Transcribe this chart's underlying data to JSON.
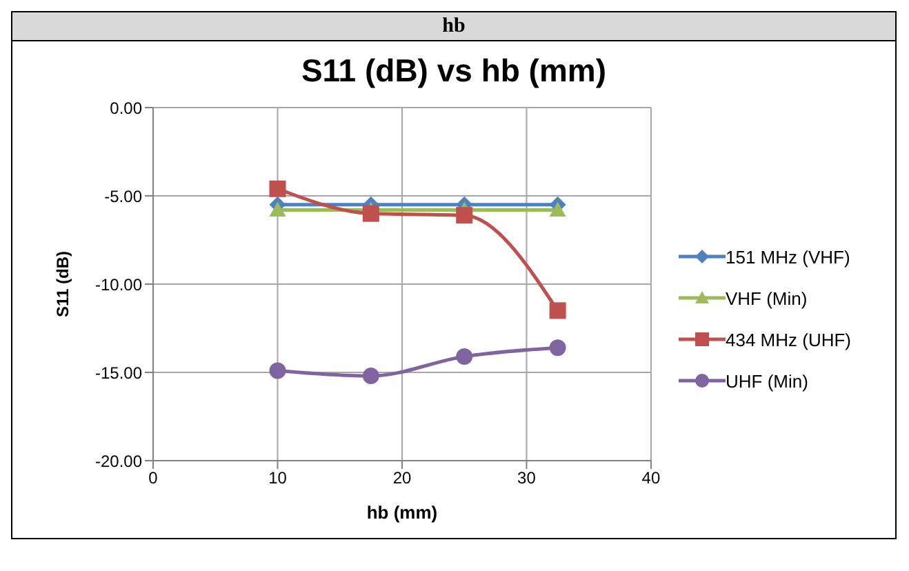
{
  "chart_data": {
    "type": "line",
    "title": "S11 (dB) vs hb (mm)",
    "annotations": [
      "hb"
    ],
    "xlabel": "hb (mm)",
    "ylabel": "S11 (dB)",
    "x": [
      10,
      17.5,
      25,
      32.5
    ],
    "series": [
      {
        "name": "151 MHz (VHF)",
        "color": "#4f81bd",
        "marker": "diamond",
        "values": [
          -5.5,
          -5.5,
          -5.5,
          -5.5
        ]
      },
      {
        "name": "VHF (Min)",
        "color": "#9bbb59",
        "marker": "triangle",
        "values": [
          -5.8,
          -5.8,
          -5.8,
          -5.8
        ]
      },
      {
        "name": "434 MHz (UHF)",
        "color": "#c0504d",
        "marker": "square",
        "values": [
          -4.6,
          -6.0,
          -6.1,
          -11.5
        ]
      },
      {
        "name": "UHF (Min)",
        "color": "#8064a2",
        "marker": "circle",
        "values": [
          -14.9,
          -15.2,
          -14.1,
          -13.6
        ]
      }
    ],
    "xlim": [
      0,
      40
    ],
    "xticks": [
      0,
      10,
      20,
      30,
      40
    ],
    "ylim": [
      -20,
      0
    ],
    "yticks": [
      {
        "value": -20,
        "label": "-20.00"
      },
      {
        "value": -15,
        "label": "-15.00"
      },
      {
        "value": -10,
        "label": "-10.00"
      },
      {
        "value": -5,
        "label": "-5.00"
      },
      {
        "value": 0,
        "label": "0.00"
      }
    ],
    "grid": true,
    "legend": "right",
    "line_style": "solid"
  }
}
